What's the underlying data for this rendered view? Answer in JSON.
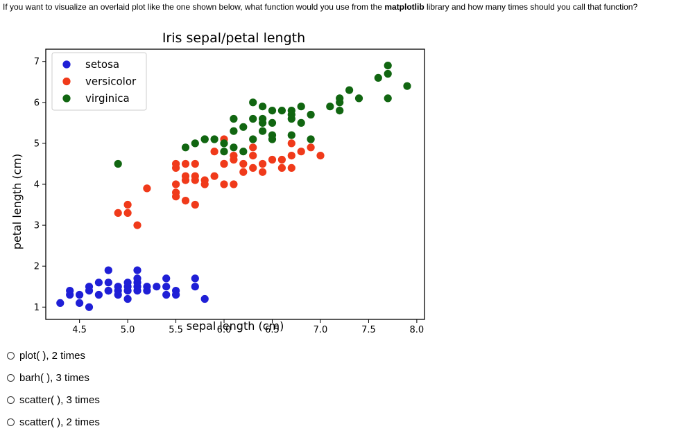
{
  "question": {
    "part1": "If you want to visualize an overlaid plot like the one shown below, what function would you use from the ",
    "part2": "matplotlib",
    "part3": " library and how many times should you call that function?"
  },
  "options": [
    {
      "label": "plot( ), 2 times"
    },
    {
      "label": "barh( ), 3 times"
    },
    {
      "label": "scatter( ), 3 times"
    },
    {
      "label": "scatter( ), 2 times"
    }
  ],
  "chart_data": {
    "type": "scatter",
    "title": "Iris sepal/petal length",
    "xlabel": "sepal length (cm)",
    "ylabel": "petal length (cm)",
    "xlim": [
      4.15,
      8.08
    ],
    "ylim": [
      0.7,
      7.3
    ],
    "xticks": [
      "4.5",
      "5.0",
      "5.5",
      "6.0",
      "6.5",
      "7.0",
      "7.5",
      "8.0"
    ],
    "yticks": [
      "1",
      "2",
      "3",
      "4",
      "5",
      "6",
      "7"
    ],
    "xtick_values": [
      4.5,
      5.0,
      5.5,
      6.0,
      6.5,
      7.0,
      7.5,
      8.0
    ],
    "ytick_values": [
      1,
      2,
      3,
      4,
      5,
      6,
      7
    ],
    "grid": false,
    "legend_position": "top-left",
    "series": [
      {
        "name": "setosa",
        "color": "#1f1fd6",
        "points": [
          [
            4.3,
            1.1
          ],
          [
            4.4,
            1.3
          ],
          [
            4.4,
            1.4
          ],
          [
            4.5,
            1.3
          ],
          [
            4.6,
            1.4
          ],
          [
            4.6,
            1.5
          ],
          [
            4.6,
            1.0
          ],
          [
            4.7,
            1.3
          ],
          [
            4.7,
            1.6
          ],
          [
            4.8,
            1.4
          ],
          [
            4.8,
            1.6
          ],
          [
            4.8,
            1.9
          ],
          [
            4.8,
            1.4
          ],
          [
            4.9,
            1.4
          ],
          [
            4.9,
            1.5
          ],
          [
            5.0,
            1.4
          ],
          [
            5.0,
            1.5
          ],
          [
            5.0,
            1.6
          ],
          [
            5.0,
            1.2
          ],
          [
            5.1,
            1.4
          ],
          [
            5.1,
            1.5
          ],
          [
            5.1,
            1.7
          ],
          [
            5.1,
            1.9
          ],
          [
            5.1,
            1.6
          ],
          [
            5.2,
            1.5
          ],
          [
            5.2,
            1.4
          ],
          [
            5.3,
            1.5
          ],
          [
            5.4,
            1.7
          ],
          [
            5.4,
            1.5
          ],
          [
            5.4,
            1.3
          ],
          [
            5.5,
            1.4
          ],
          [
            5.5,
            1.3
          ],
          [
            5.7,
            1.5
          ],
          [
            5.7,
            1.7
          ],
          [
            5.8,
            1.2
          ],
          [
            4.5,
            1.1
          ],
          [
            4.9,
            1.3
          ]
        ]
      },
      {
        "name": "versicolor",
        "color": "#f03a1a",
        "points": [
          [
            4.9,
            3.3
          ],
          [
            5.0,
            3.5
          ],
          [
            5.0,
            3.3
          ],
          [
            5.1,
            3.0
          ],
          [
            5.2,
            3.9
          ],
          [
            5.5,
            4.0
          ],
          [
            5.5,
            4.4
          ],
          [
            5.5,
            3.7
          ],
          [
            5.5,
            3.8
          ],
          [
            5.5,
            4.5
          ],
          [
            5.6,
            4.1
          ],
          [
            5.6,
            3.6
          ],
          [
            5.6,
            4.5
          ],
          [
            5.6,
            4.2
          ],
          [
            5.7,
            4.2
          ],
          [
            5.7,
            4.1
          ],
          [
            5.7,
            3.5
          ],
          [
            5.7,
            4.5
          ],
          [
            5.8,
            4.1
          ],
          [
            5.8,
            4.0
          ],
          [
            5.9,
            4.2
          ],
          [
            5.9,
            4.8
          ],
          [
            6.0,
            4.0
          ],
          [
            6.0,
            4.5
          ],
          [
            6.0,
            5.1
          ],
          [
            6.0,
            4.5
          ],
          [
            6.1,
            4.7
          ],
          [
            6.1,
            4.0
          ],
          [
            6.1,
            4.6
          ],
          [
            6.2,
            4.3
          ],
          [
            6.2,
            4.5
          ],
          [
            6.3,
            4.7
          ],
          [
            6.3,
            4.4
          ],
          [
            6.3,
            4.9
          ],
          [
            6.4,
            4.5
          ],
          [
            6.4,
            4.3
          ],
          [
            6.5,
            4.6
          ],
          [
            6.6,
            4.6
          ],
          [
            6.6,
            4.4
          ],
          [
            6.7,
            4.4
          ],
          [
            6.7,
            4.7
          ],
          [
            6.7,
            5.0
          ],
          [
            6.8,
            4.8
          ],
          [
            6.9,
            4.9
          ],
          [
            7.0,
            4.7
          ]
        ]
      },
      {
        "name": "virginica",
        "color": "#116611",
        "points": [
          [
            4.9,
            4.5
          ],
          [
            5.6,
            4.9
          ],
          [
            5.7,
            5.0
          ],
          [
            5.8,
            5.1
          ],
          [
            5.8,
            5.1
          ],
          [
            5.9,
            5.1
          ],
          [
            6.0,
            4.8
          ],
          [
            6.0,
            5.0
          ],
          [
            6.1,
            4.9
          ],
          [
            6.1,
            5.6
          ],
          [
            6.2,
            4.8
          ],
          [
            6.2,
            5.4
          ],
          [
            6.3,
            5.6
          ],
          [
            6.3,
            6.0
          ],
          [
            6.3,
            5.1
          ],
          [
            6.4,
            5.3
          ],
          [
            6.4,
            5.6
          ],
          [
            6.4,
            5.5
          ],
          [
            6.5,
            5.2
          ],
          [
            6.5,
            5.5
          ],
          [
            6.5,
            5.1
          ],
          [
            6.5,
            5.8
          ],
          [
            6.7,
            5.7
          ],
          [
            6.7,
            5.6
          ],
          [
            6.7,
            5.2
          ],
          [
            6.7,
            5.8
          ],
          [
            6.8,
            5.5
          ],
          [
            6.8,
            5.9
          ],
          [
            6.9,
            5.1
          ],
          [
            6.9,
            5.7
          ],
          [
            7.1,
            5.9
          ],
          [
            7.2,
            6.0
          ],
          [
            7.2,
            6.1
          ],
          [
            7.2,
            5.8
          ],
          [
            7.3,
            6.3
          ],
          [
            7.4,
            6.1
          ],
          [
            7.6,
            6.6
          ],
          [
            7.7,
            6.7
          ],
          [
            7.7,
            6.9
          ],
          [
            7.7,
            6.1
          ],
          [
            7.9,
            6.4
          ],
          [
            6.4,
            5.9
          ],
          [
            6.6,
            5.8
          ],
          [
            6.1,
            5.3
          ]
        ]
      }
    ]
  }
}
